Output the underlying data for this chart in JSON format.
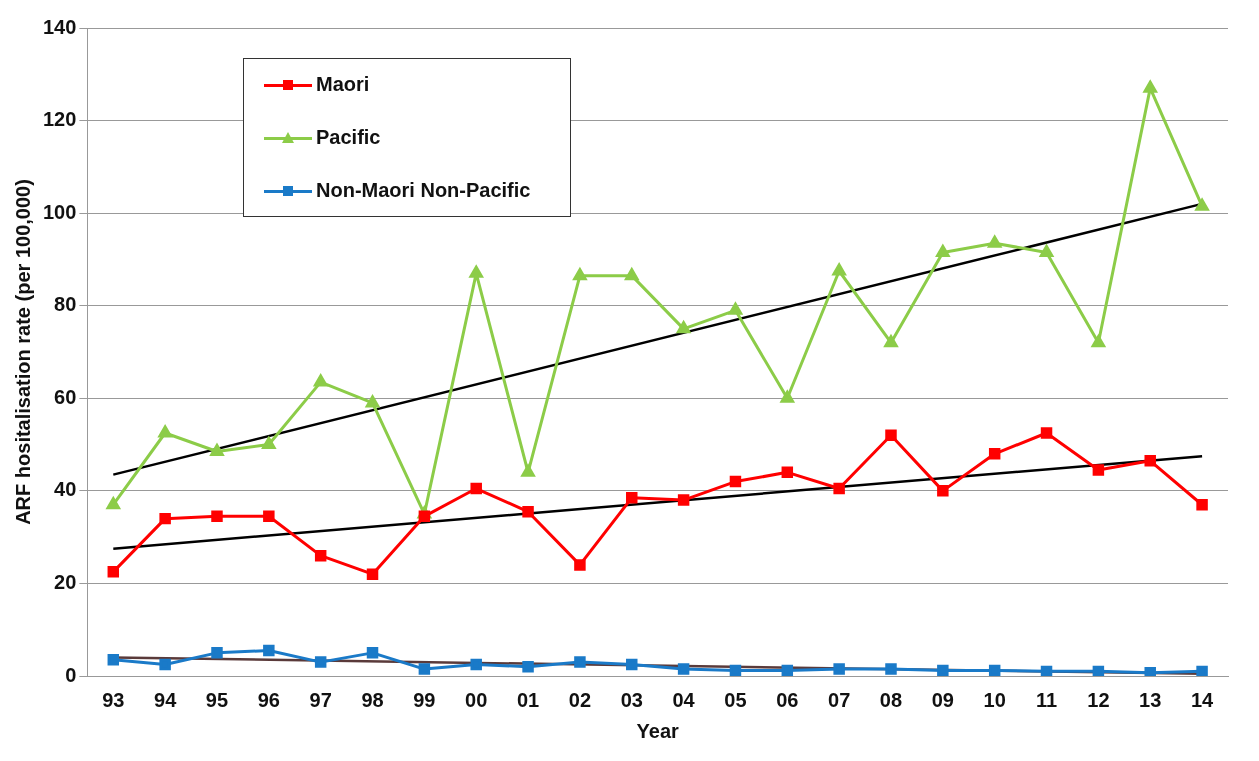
{
  "chart_data": {
    "type": "line",
    "xlabel": "Year",
    "ylabel": "ARF hositalisation rate (per 100,000)",
    "categories": [
      "93",
      "94",
      "95",
      "96",
      "97",
      "98",
      "99",
      "00",
      "01",
      "02",
      "03",
      "04",
      "05",
      "06",
      "07",
      "08",
      "09",
      "10",
      "11",
      "12",
      "13",
      "14"
    ],
    "ylim": [
      0,
      140
    ],
    "yticks": [
      0,
      20,
      40,
      60,
      80,
      100,
      120,
      140
    ],
    "grid": "y",
    "legend": "top left",
    "line_style": "solid",
    "series": [
      {
        "name": "Maori",
        "color": "#ff0000",
        "marker": "square",
        "values": [
          22.5,
          34,
          34.5,
          34.5,
          26,
          22,
          34.5,
          40.5,
          35.5,
          24,
          38.5,
          38,
          42,
          44,
          40.5,
          52,
          40,
          48,
          52.5,
          44.5,
          46.5,
          37
        ]
      },
      {
        "name": "Pacific",
        "color": "#8ccc48",
        "marker": "triangle",
        "values": [
          37,
          52.5,
          48.5,
          50,
          63.5,
          59,
          35,
          87,
          44,
          86.5,
          86.5,
          75,
          79,
          60,
          87.5,
          72,
          91.5,
          93.5,
          91.5,
          72,
          127,
          101.5
        ]
      },
      {
        "name": "Non-Maori Non-Pacific",
        "color": "#1a7ac8",
        "marker": "square",
        "values": [
          3.5,
          2.5,
          5,
          5.5,
          3,
          5,
          1.5,
          2.5,
          2,
          3,
          2.5,
          1.5,
          1.2,
          1.2,
          1.5,
          1.5,
          1.2,
          1.2,
          1,
          1,
          0.7,
          1
        ]
      },
      {
        "color": "#000000",
        "marker": "none",
        "x": [
          "93",
          "14"
        ],
        "values": [
          27.5,
          47.5
        ]
      },
      {
        "color": "#000000",
        "marker": "none",
        "x": [
          "93",
          "14"
        ],
        "values": [
          43.5,
          102
        ]
      },
      {
        "color": "#5a3a3a",
        "marker": "none",
        "x": [
          "93",
          "14"
        ],
        "values": [
          4,
          0.5
        ]
      }
    ]
  }
}
